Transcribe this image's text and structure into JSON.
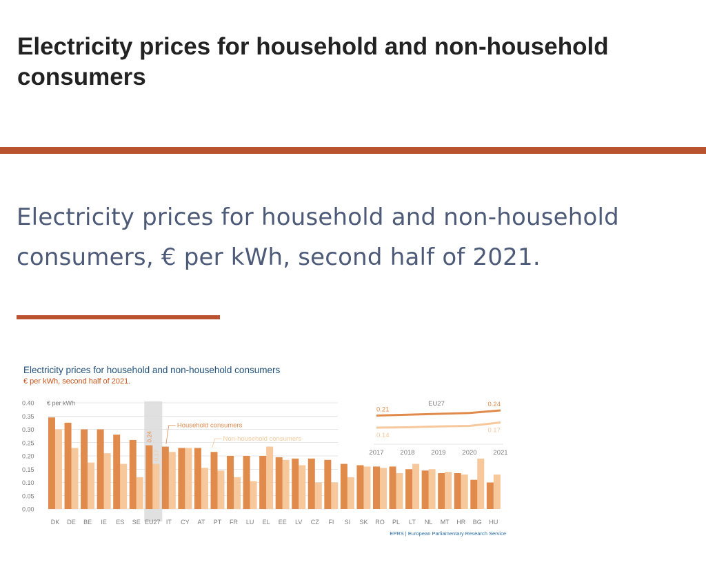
{
  "page": {
    "title": "Electricity prices for household and non-household consumers",
    "subtitle": "Electricity prices for household and non-household consumers, € per kWh, second half of 2021."
  },
  "colors": {
    "accent_rule": "#b8522f",
    "household": "#e08a4b",
    "non_household": "#f6c89c",
    "eu_highlight": "#dadada",
    "chart_title": "#1e4e79",
    "chart_subtitle": "#c8521b",
    "axis_text": "#7a7a7a",
    "credit": "#2a6fa8"
  },
  "chart_data": {
    "type": "bar",
    "title": "Electricity prices for household and non-household consumers",
    "subtitle": "€ per kWh, second half of 2021.",
    "ylabel": "€ per kWh",
    "ylim": [
      0,
      0.4
    ],
    "yticks": [
      "0.00",
      "0.05",
      "0.10",
      "0.15",
      "0.20",
      "0.25",
      "0.30",
      "0.35",
      "0.40"
    ],
    "grid": true,
    "highlight_category": "EU27",
    "categories": [
      "DK",
      "DE",
      "BE",
      "IE",
      "ES",
      "SE",
      "EU27",
      "IT",
      "CY",
      "AT",
      "PT",
      "FR",
      "LU",
      "EL",
      "EE",
      "LV",
      "CZ",
      "FI",
      "SI",
      "SK",
      "RO",
      "PL",
      "LT",
      "NL",
      "MT",
      "HR",
      "BG",
      "HU"
    ],
    "series": [
      {
        "name": "Household consumers",
        "values": [
          0.345,
          0.325,
          0.3,
          0.3,
          0.28,
          0.26,
          0.24,
          0.235,
          0.23,
          0.23,
          0.215,
          0.2,
          0.2,
          0.2,
          0.195,
          0.19,
          0.19,
          0.185,
          0.17,
          0.165,
          0.16,
          0.16,
          0.15,
          0.145,
          0.135,
          0.135,
          0.11,
          0.1
        ]
      },
      {
        "name": "Non-household consumers",
        "values": [
          0.3,
          0.23,
          0.175,
          0.21,
          0.17,
          0.12,
          0.17,
          0.215,
          0.23,
          0.155,
          0.145,
          0.12,
          0.105,
          0.235,
          0.185,
          0.165,
          0.1,
          0.1,
          0.12,
          0.16,
          0.155,
          0.135,
          0.17,
          0.15,
          0.14,
          0.13,
          0.19,
          0.13
        ]
      }
    ],
    "eu27_labels": {
      "household": "0.24",
      "non_household": "0.17"
    },
    "inset": {
      "type": "line",
      "title": "EU27",
      "x": [
        "2017",
        "2018",
        "2019",
        "2020",
        "2021"
      ],
      "household_values": [
        0.21,
        0.215,
        0.22,
        0.225,
        0.24
      ],
      "non_household_values": [
        0.14,
        0.142,
        0.147,
        0.15,
        0.17
      ],
      "start_labels": {
        "household": "0.21",
        "non_household": "0.14"
      },
      "end_labels": {
        "household": "0.24",
        "non_household": "0.17"
      },
      "ylim": [
        0.1,
        0.26
      ]
    },
    "source": "EPRS | European Parliamentary Research Service"
  }
}
